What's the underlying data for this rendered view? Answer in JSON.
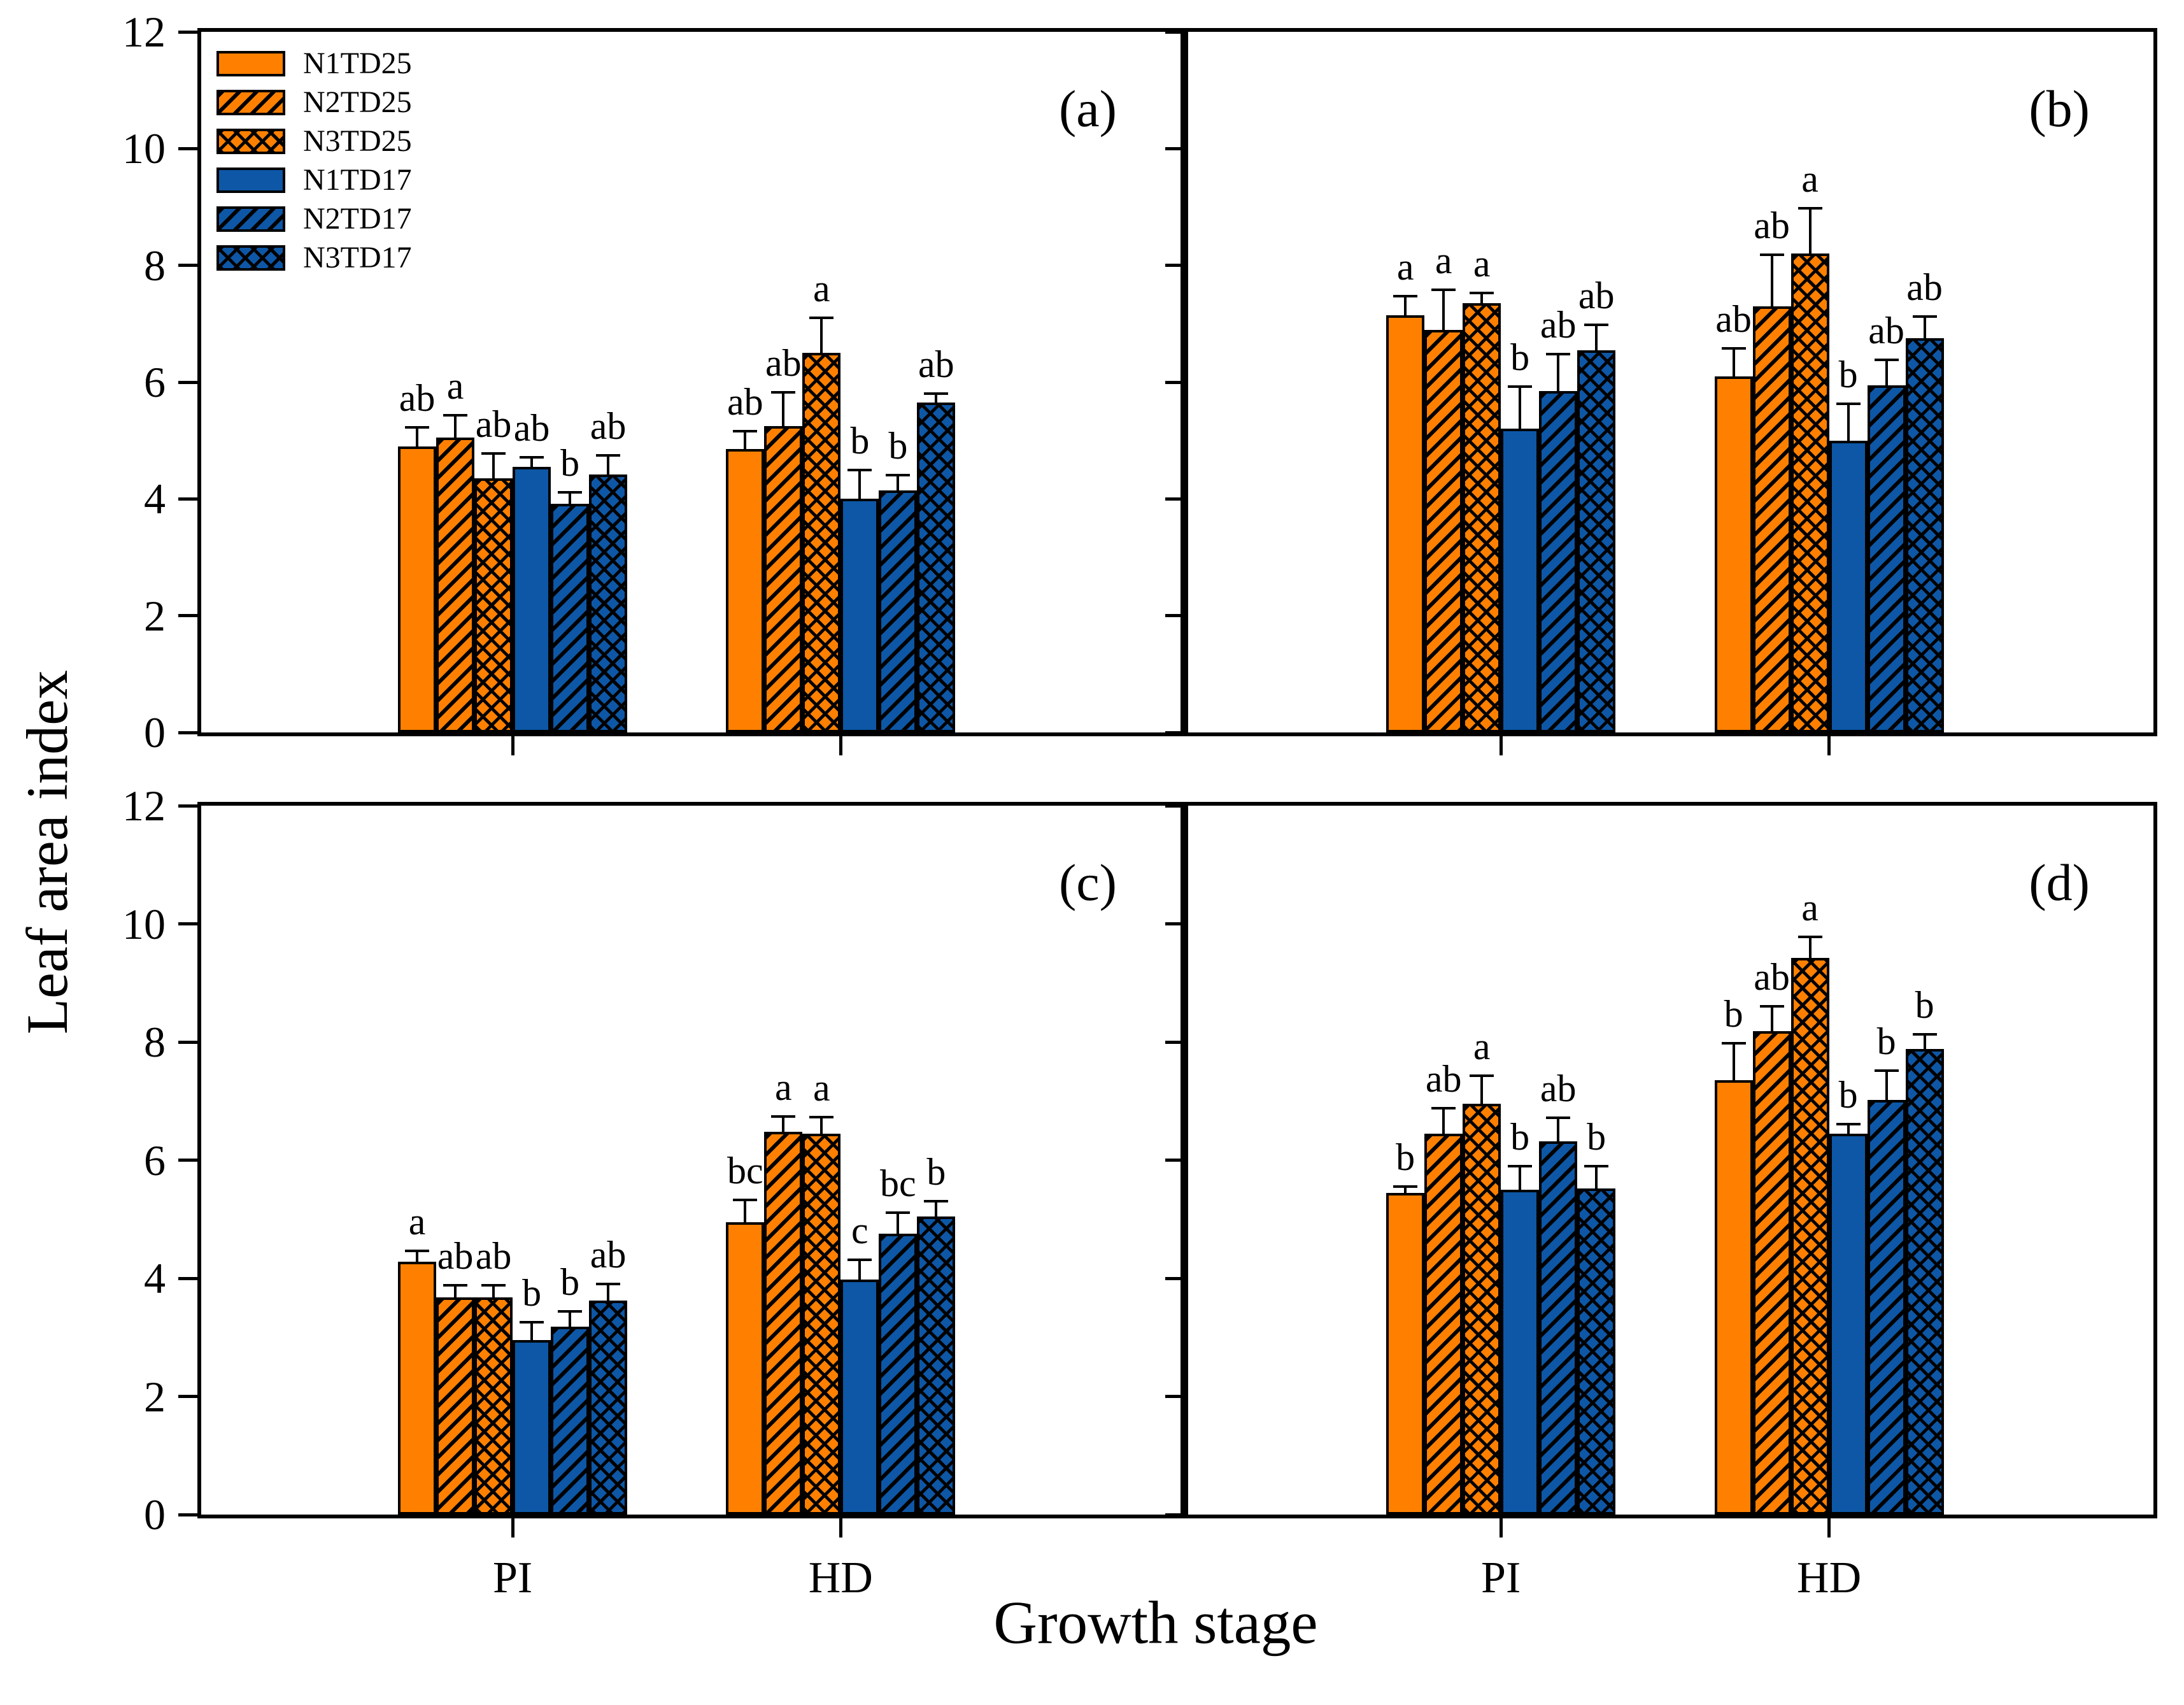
{
  "chart_data": {
    "type": "bar",
    "title": "",
    "ylabel": "Leaf area index",
    "xlabel": "Growth stage",
    "ylim": [
      0,
      12
    ],
    "y_ticks": [
      0,
      2,
      4,
      6,
      8,
      10,
      12
    ],
    "categories": [
      "PI",
      "HD"
    ],
    "grid": false,
    "legend_position": "top-left-of-panel-a",
    "error_bars": "upper, with caps",
    "colors": {
      "orange": "#FF8000",
      "blue": "#0D57A6",
      "line": "#000000",
      "background": "#FFFFFF"
    },
    "series": [
      {
        "name": "N1TD25",
        "color": "#FF8000",
        "hatch": "none"
      },
      {
        "name": "N2TD25",
        "color": "#FF8000",
        "hatch": "diagonal"
      },
      {
        "name": "N3TD25",
        "color": "#FF8000",
        "hatch": "cross"
      },
      {
        "name": "N1TD17",
        "color": "#0D57A6",
        "hatch": "none"
      },
      {
        "name": "N2TD17",
        "color": "#0D57A6",
        "hatch": "diagonal"
      },
      {
        "name": "N3TD17",
        "color": "#0D57A6",
        "hatch": "cross"
      }
    ],
    "panels": [
      {
        "label": "(a)",
        "groups": [
          {
            "category": "PI",
            "values": [
              4.9,
              5.05,
              4.35,
              4.55,
              3.92,
              4.42
            ],
            "errors": [
              0.35,
              0.4,
              0.45,
              0.18,
              0.22,
              0.35
            ],
            "letters": [
              "ab",
              "a",
              "ab",
              "ab",
              "b",
              "ab"
            ]
          },
          {
            "category": "HD",
            "values": [
              4.85,
              5.25,
              6.5,
              4.0,
              4.15,
              5.65
            ],
            "errors": [
              0.33,
              0.6,
              0.62,
              0.52,
              0.28,
              0.18
            ],
            "letters": [
              "ab",
              "ab",
              "a",
              "b",
              "b",
              "ab"
            ]
          }
        ]
      },
      {
        "label": "(b)",
        "groups": [
          {
            "category": "PI",
            "values": [
              7.15,
              6.9,
              7.35,
              5.2,
              5.85,
              6.55
            ],
            "errors": [
              0.35,
              0.7,
              0.2,
              0.75,
              0.65,
              0.45
            ],
            "letters": [
              "a",
              "a",
              "a",
              "b",
              "ab",
              "ab"
            ]
          },
          {
            "category": "HD",
            "values": [
              6.1,
              7.3,
              8.2,
              5.0,
              5.95,
              6.75
            ],
            "errors": [
              0.5,
              0.9,
              0.8,
              0.65,
              0.45,
              0.4
            ],
            "letters": [
              "ab",
              "ab",
              "a",
              "b",
              "ab",
              "ab"
            ]
          }
        ]
      },
      {
        "label": "(c)",
        "groups": [
          {
            "category": "PI",
            "values": [
              4.28,
              3.68,
              3.68,
              2.95,
              3.18,
              3.62
            ],
            "errors": [
              0.2,
              0.22,
              0.22,
              0.33,
              0.28,
              0.3
            ],
            "letters": [
              "a",
              "ab",
              "ab",
              "b",
              "b",
              "ab"
            ]
          },
          {
            "category": "HD",
            "values": [
              4.95,
              6.48,
              6.45,
              3.98,
              4.75,
              5.05
            ],
            "errors": [
              0.4,
              0.28,
              0.3,
              0.35,
              0.38,
              0.28
            ],
            "letters": [
              "bc",
              "a",
              "a",
              "c",
              "bc",
              "b"
            ]
          }
        ]
      },
      {
        "label": "(d)",
        "groups": [
          {
            "category": "PI",
            "values": [
              5.45,
              6.45,
              6.95,
              5.5,
              6.32,
              5.52
            ],
            "errors": [
              0.12,
              0.45,
              0.5,
              0.42,
              0.42,
              0.4
            ],
            "letters": [
              "b",
              "ab",
              "a",
              "b",
              "ab",
              "b"
            ]
          },
          {
            "category": "HD",
            "values": [
              7.35,
              8.18,
              9.42,
              6.45,
              7.02,
              7.88
            ],
            "errors": [
              0.65,
              0.45,
              0.38,
              0.18,
              0.52,
              0.27
            ],
            "letters": [
              "b",
              "ab",
              "a",
              "b",
              "b",
              "b"
            ]
          }
        ]
      }
    ]
  }
}
